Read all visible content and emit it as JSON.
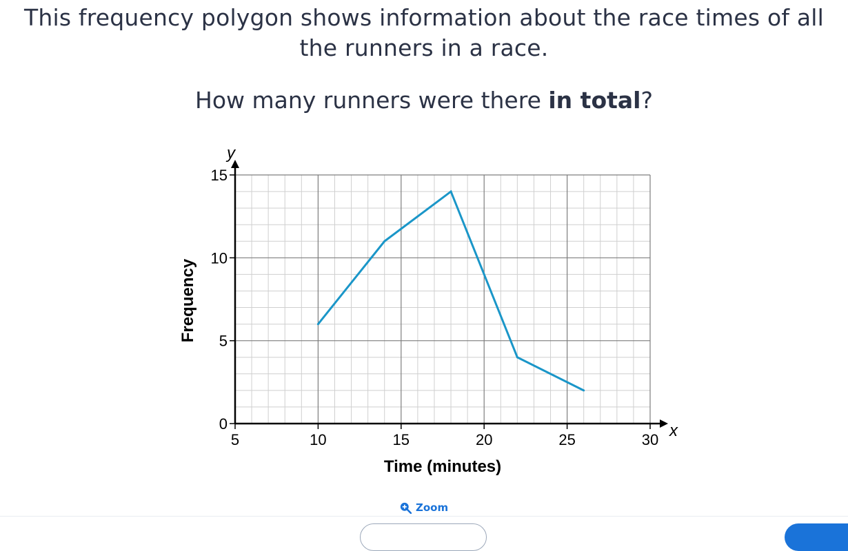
{
  "question": {
    "line1": "This frequency polygon shows information about the race times of all",
    "line2": "the runners in a race.",
    "prompt_start": "How many runners were there ",
    "prompt_bold": "in total",
    "prompt_end": "?"
  },
  "chart_data": {
    "type": "line",
    "title": "",
    "xlabel": "Time (minutes)",
    "ylabel": "Frequency",
    "x_axis_symbol": "x",
    "y_axis_symbol": "y",
    "xlim": [
      5,
      30
    ],
    "ylim": [
      0,
      15
    ],
    "x_ticks": [
      5,
      10,
      15,
      20,
      25,
      30
    ],
    "y_ticks": [
      0,
      5,
      10,
      15
    ],
    "grid": true,
    "x": [
      10,
      14,
      18,
      22,
      26
    ],
    "y": [
      6,
      11,
      14,
      4,
      2
    ],
    "line_color": "#1a96c8"
  },
  "controls": {
    "zoom_label": "Zoom",
    "accent_color": "#1a73d9"
  }
}
